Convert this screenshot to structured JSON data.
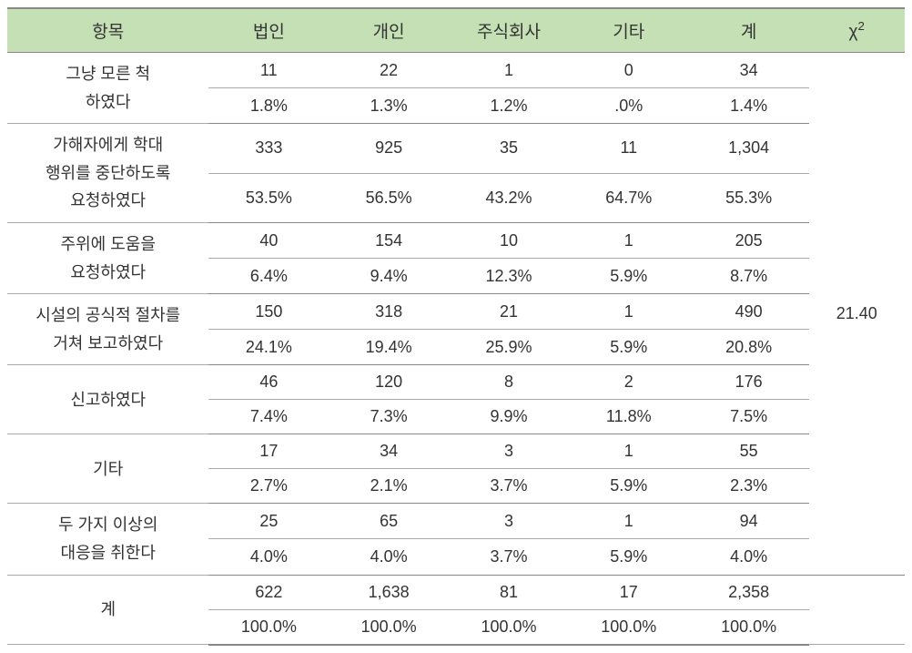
{
  "table": {
    "type": "table",
    "header_bg": "#c5e0b4",
    "border_color": "#888888",
    "inner_border_color": "#aaaaaa",
    "text_color": "#333333",
    "font_size_header": 19,
    "font_size_cell": 18,
    "headers": [
      "항목",
      "법인",
      "개인",
      "주식회사",
      "기타",
      "계"
    ],
    "chi_header": "χ",
    "chi_super": "2",
    "chi_value": "21.40",
    "column_widths": [
      "21%",
      "12.5%",
      "12.5%",
      "12.5%",
      "12.5%",
      "12.5%",
      "10%"
    ],
    "groups": [
      {
        "label": "그냥 모른 척\n하였다",
        "count": [
          "11",
          "22",
          "1",
          "0",
          "34"
        ],
        "pct": [
          "1.8%",
          "1.3%",
          "1.2%",
          ".0%",
          "1.4%"
        ]
      },
      {
        "label": "가해자에게 학대\n행위를 중단하도록\n요청하였다",
        "count": [
          "333",
          "925",
          "35",
          "11",
          "1,304"
        ],
        "pct": [
          "53.5%",
          "56.5%",
          "43.2%",
          "64.7%",
          "55.3%"
        ]
      },
      {
        "label": "주위에 도움을\n요청하였다",
        "count": [
          "40",
          "154",
          "10",
          "1",
          "205"
        ],
        "pct": [
          "6.4%",
          "9.4%",
          "12.3%",
          "5.9%",
          "8.7%"
        ]
      },
      {
        "label": "시설의 공식적 절차를\n거쳐 보고하였다",
        "count": [
          "150",
          "318",
          "21",
          "1",
          "490"
        ],
        "pct": [
          "24.1%",
          "19.4%",
          "25.9%",
          "5.9%",
          "20.8%"
        ]
      },
      {
        "label": "신고하였다",
        "count": [
          "46",
          "120",
          "8",
          "2",
          "176"
        ],
        "pct": [
          "7.4%",
          "7.3%",
          "9.9%",
          "11.8%",
          "7.5%"
        ]
      },
      {
        "label": "기타",
        "count": [
          "17",
          "34",
          "3",
          "1",
          "55"
        ],
        "pct": [
          "2.7%",
          "2.1%",
          "3.7%",
          "5.9%",
          "2.3%"
        ]
      },
      {
        "label": "두 가지 이상의\n대응을 취한다",
        "count": [
          "25",
          "65",
          "3",
          "1",
          "94"
        ],
        "pct": [
          "4.0%",
          "4.0%",
          "3.7%",
          "5.9%",
          "4.0%"
        ]
      },
      {
        "label": "계",
        "count": [
          "622",
          "1,638",
          "81",
          "17",
          "2,358"
        ],
        "pct": [
          "100.0%",
          "100.0%",
          "100.0%",
          "100.0%",
          "100.0%"
        ]
      }
    ]
  }
}
